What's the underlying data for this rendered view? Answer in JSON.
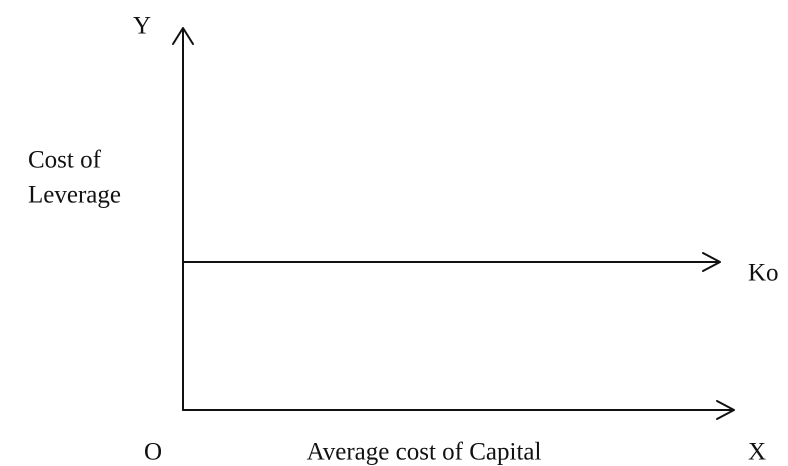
{
  "axes": {
    "y_end": "Y",
    "x_end": "X",
    "origin": "O"
  },
  "y_title": [
    "Cost of",
    "Leverage"
  ],
  "x_title": "Average cost of Capital",
  "line_label": "Ko"
}
